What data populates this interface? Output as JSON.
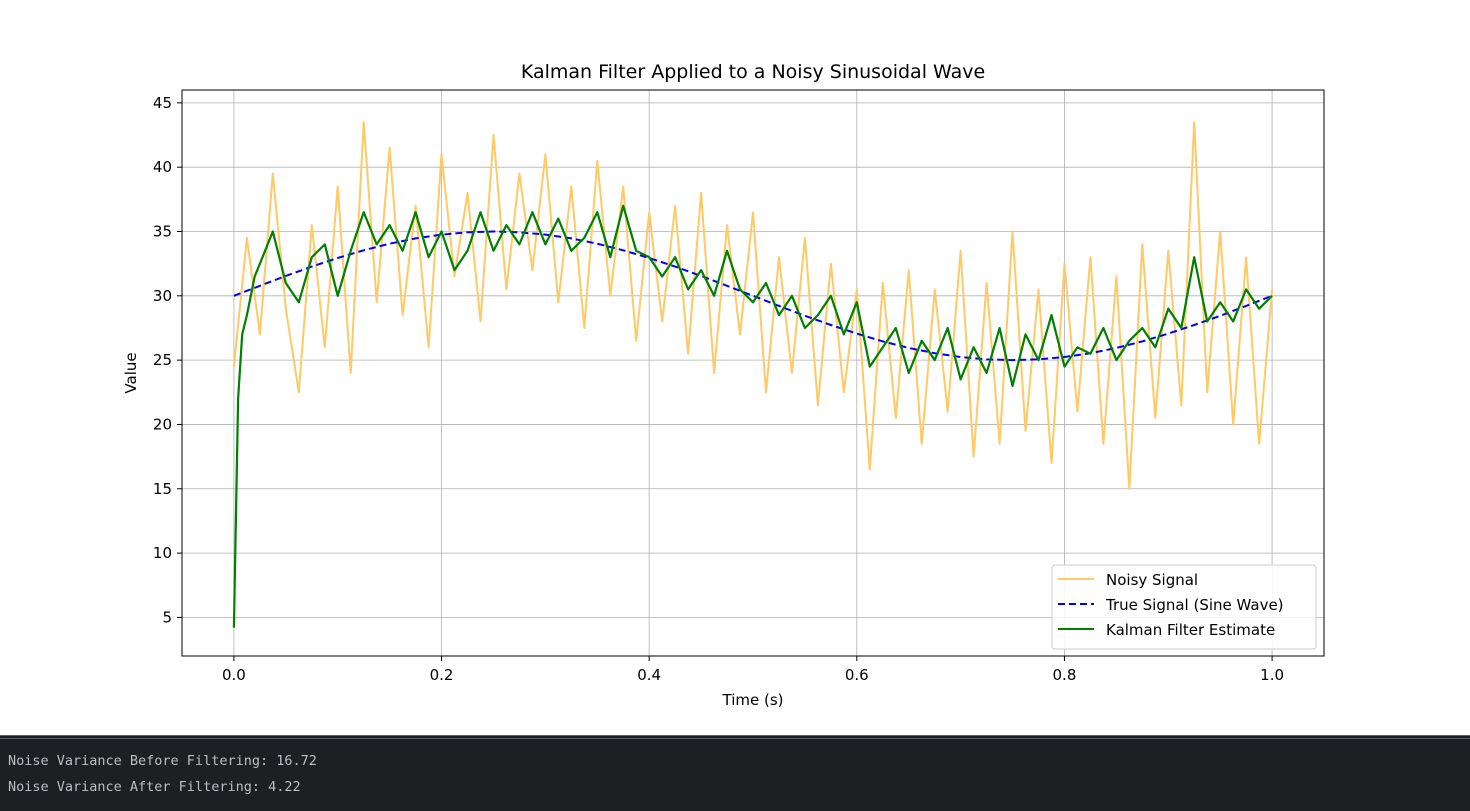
{
  "chart_data": {
    "type": "line",
    "title": "Kalman Filter Applied to a Noisy Sinusoidal Wave",
    "xlabel": "Time (s)",
    "ylabel": "Value",
    "xlim": [
      -0.05,
      1.05
    ],
    "ylim": [
      2.0,
      46.0
    ],
    "xticks": [
      0.0,
      0.2,
      0.4,
      0.6,
      0.8,
      1.0
    ],
    "xtick_labels": [
      "0.0",
      "0.2",
      "0.4",
      "0.6",
      "0.8",
      "1.0"
    ],
    "yticks": [
      5,
      10,
      15,
      20,
      25,
      30,
      35,
      40,
      45
    ],
    "ytick_labels": [
      "5",
      "10",
      "15",
      "20",
      "25",
      "30",
      "35",
      "40",
      "45"
    ],
    "grid": true,
    "legend_position": "lower-right",
    "series": [
      {
        "name": "Noisy Signal",
        "color": "#ffc966",
        "style": "solid",
        "x": [
          0.0,
          0.0125,
          0.025,
          0.0375,
          0.05,
          0.0625,
          0.075,
          0.0875,
          0.1,
          0.1125,
          0.125,
          0.1375,
          0.15,
          0.1625,
          0.175,
          0.1875,
          0.2,
          0.2125,
          0.225,
          0.2375,
          0.25,
          0.2625,
          0.275,
          0.2875,
          0.3,
          0.3125,
          0.325,
          0.3375,
          0.35,
          0.3625,
          0.375,
          0.3875,
          0.4,
          0.4125,
          0.425,
          0.4375,
          0.45,
          0.4625,
          0.475,
          0.4875,
          0.5,
          0.5125,
          0.525,
          0.5375,
          0.55,
          0.5625,
          0.575,
          0.5875,
          0.6,
          0.6125,
          0.625,
          0.6375,
          0.65,
          0.6625,
          0.675,
          0.6875,
          0.7,
          0.7125,
          0.725,
          0.7375,
          0.75,
          0.7625,
          0.775,
          0.7875,
          0.8,
          0.8125,
          0.825,
          0.8375,
          0.85,
          0.8625,
          0.875,
          0.8875,
          0.9,
          0.9125,
          0.925,
          0.9375,
          0.95,
          0.9625,
          0.975,
          0.9875,
          1.0
        ],
        "y": [
          24.5,
          34.5,
          27.0,
          39.5,
          29.0,
          22.5,
          35.5,
          26.0,
          38.5,
          24.0,
          43.5,
          29.5,
          41.5,
          28.5,
          37.0,
          26.0,
          41.0,
          31.5,
          38.0,
          28.0,
          42.5,
          30.5,
          39.5,
          32.0,
          41.0,
          29.5,
          38.5,
          27.5,
          40.5,
          30.0,
          38.5,
          26.5,
          36.5,
          28.0,
          37.0,
          25.5,
          38.0,
          24.0,
          35.5,
          27.0,
          36.5,
          22.5,
          33.0,
          24.0,
          34.5,
          21.5,
          32.5,
          22.5,
          30.5,
          16.5,
          31.0,
          20.5,
          32.0,
          18.5,
          30.5,
          21.0,
          33.5,
          17.5,
          31.0,
          18.5,
          35.0,
          19.5,
          30.5,
          17.0,
          32.5,
          21.0,
          33.0,
          18.5,
          31.5,
          15.0,
          34.0,
          20.5,
          33.5,
          21.5,
          43.5,
          22.5,
          35.0,
          20.0,
          33.0,
          18.5,
          30.5
        ]
      },
      {
        "name": "True Signal (Sine Wave)",
        "color": "#0000ff",
        "style": "dashed",
        "x": [
          0.0,
          0.025,
          0.05,
          0.075,
          0.1,
          0.125,
          0.15,
          0.175,
          0.2,
          0.225,
          0.25,
          0.275,
          0.3,
          0.325,
          0.35,
          0.375,
          0.4,
          0.425,
          0.45,
          0.475,
          0.5,
          0.525,
          0.55,
          0.575,
          0.6,
          0.625,
          0.65,
          0.675,
          0.7,
          0.725,
          0.75,
          0.775,
          0.8,
          0.825,
          0.85,
          0.875,
          0.9,
          0.925,
          0.95,
          0.975,
          1.0
        ],
        "y": [
          30.0,
          30.78,
          31.55,
          32.27,
          32.94,
          33.54,
          34.05,
          34.46,
          34.76,
          34.94,
          35.0,
          34.94,
          34.76,
          34.46,
          34.05,
          33.54,
          32.94,
          32.27,
          31.55,
          30.78,
          30.0,
          29.22,
          28.45,
          27.73,
          27.06,
          26.46,
          25.95,
          25.54,
          25.24,
          25.06,
          25.0,
          25.06,
          25.24,
          25.54,
          25.95,
          26.46,
          27.06,
          27.73,
          28.45,
          29.22,
          30.0
        ]
      },
      {
        "name": "Kalman Filter Estimate",
        "color": "#008000",
        "style": "solid",
        "x": [
          0.0,
          0.004,
          0.008,
          0.0125,
          0.02,
          0.025,
          0.0375,
          0.05,
          0.0625,
          0.075,
          0.0875,
          0.1,
          0.1125,
          0.125,
          0.1375,
          0.15,
          0.1625,
          0.175,
          0.1875,
          0.2,
          0.2125,
          0.225,
          0.2375,
          0.25,
          0.2625,
          0.275,
          0.2875,
          0.3,
          0.3125,
          0.325,
          0.3375,
          0.35,
          0.3625,
          0.375,
          0.3875,
          0.4,
          0.4125,
          0.425,
          0.4375,
          0.45,
          0.4625,
          0.475,
          0.4875,
          0.5,
          0.5125,
          0.525,
          0.5375,
          0.55,
          0.5625,
          0.575,
          0.5875,
          0.6,
          0.6125,
          0.625,
          0.6375,
          0.65,
          0.6625,
          0.675,
          0.6875,
          0.7,
          0.7125,
          0.725,
          0.7375,
          0.75,
          0.7625,
          0.775,
          0.7875,
          0.8,
          0.8125,
          0.825,
          0.8375,
          0.85,
          0.8625,
          0.875,
          0.8875,
          0.9,
          0.9125,
          0.925,
          0.9375,
          0.95,
          0.9625,
          0.975,
          0.9875,
          1.0
        ],
        "y": [
          4.2,
          22.0,
          27.0,
          28.5,
          31.5,
          32.5,
          35.0,
          31.0,
          29.5,
          33.0,
          34.0,
          30.0,
          33.5,
          36.5,
          34.0,
          35.5,
          33.5,
          36.5,
          33.0,
          35.0,
          32.0,
          33.5,
          36.5,
          33.5,
          35.5,
          34.0,
          36.5,
          34.0,
          36.0,
          33.5,
          34.5,
          36.5,
          33.0,
          37.0,
          33.5,
          33.0,
          31.5,
          33.0,
          30.5,
          32.0,
          30.0,
          33.5,
          30.5,
          29.5,
          31.0,
          28.5,
          30.0,
          27.5,
          28.5,
          30.0,
          27.0,
          29.5,
          24.5,
          26.0,
          27.5,
          24.0,
          26.5,
          25.0,
          27.5,
          23.5,
          26.0,
          24.0,
          27.5,
          23.0,
          27.0,
          25.0,
          28.5,
          24.5,
          26.0,
          25.5,
          27.5,
          25.0,
          26.5,
          27.5,
          26.0,
          29.0,
          27.5,
          33.0,
          28.0,
          29.5,
          28.0,
          30.5,
          29.0,
          30.0
        ]
      }
    ]
  },
  "console": {
    "line1": "Noise Variance Before Filtering: 16.72",
    "line2": "Noise Variance After Filtering: 4.22"
  }
}
